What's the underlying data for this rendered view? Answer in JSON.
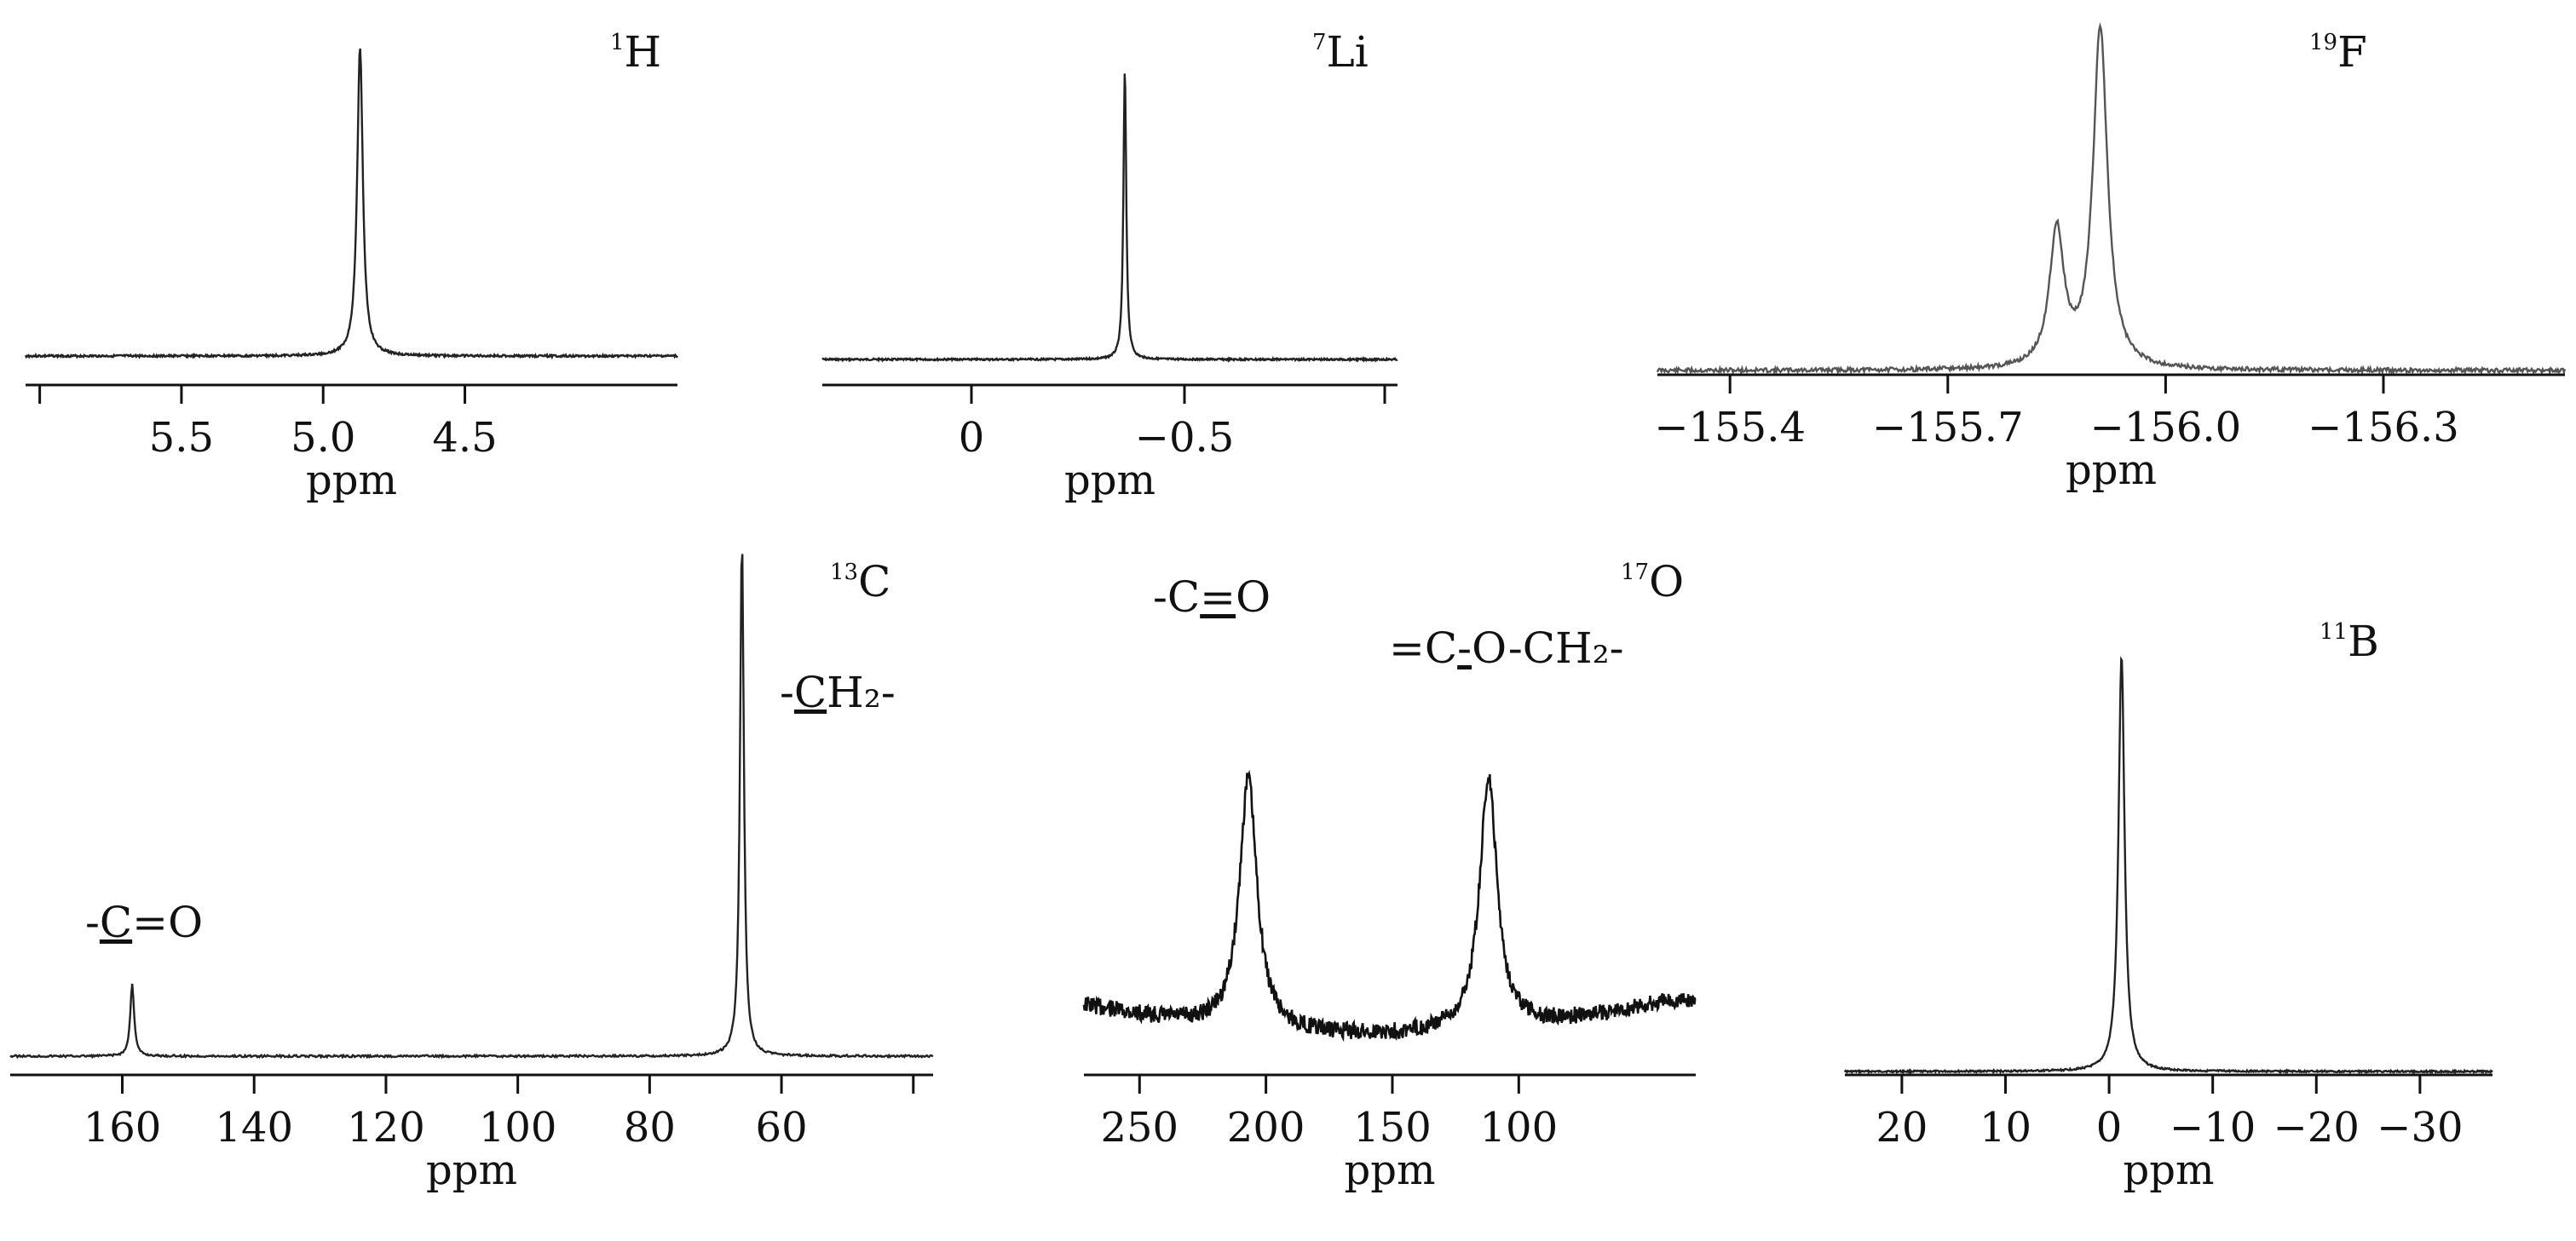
{
  "chart_data": [
    {
      "id": "h1",
      "type": "line",
      "nucleus_sup": "1",
      "nucleus": "H",
      "xlabel": "ppm",
      "x_reversed": true,
      "xlim": [
        6.05,
        3.75
      ],
      "tick_values": [
        6.0,
        5.5,
        5.0,
        4.5
      ],
      "tick_labels": [
        "",
        "5.5",
        "5.0",
        "4.5"
      ],
      "peaks": [
        {
          "x": 4.87,
          "height": 1.0
        }
      ],
      "annotations": []
    },
    {
      "id": "li7",
      "type": "line",
      "nucleus_sup": "7",
      "nucleus": "Li",
      "xlabel": "ppm",
      "x_reversed": true,
      "xlim": [
        0.35,
        -1.0
      ],
      "tick_values": [
        0,
        -0.5,
        -0.97
      ],
      "tick_labels": [
        "0",
        "−0.5",
        ""
      ],
      "peaks": [
        {
          "x": -0.36,
          "height": 1.0
        }
      ],
      "annotations": []
    },
    {
      "id": "f19",
      "type": "line",
      "nucleus_sup": "19",
      "nucleus": "F",
      "xlabel": "ppm",
      "x_reversed": true,
      "xlim": [
        -155.3,
        -156.55
      ],
      "tick_values": [
        -155.4,
        -155.7,
        -156.0,
        -156.3
      ],
      "tick_labels": [
        "−155.4",
        "−155.7",
        "−156.0",
        "−156.3"
      ],
      "peaks": [
        {
          "x": -155.85,
          "height": 0.4
        },
        {
          "x": -155.91,
          "height": 1.0
        }
      ],
      "annotations": []
    },
    {
      "id": "c13",
      "type": "line",
      "nucleus_sup": "13",
      "nucleus": "C",
      "xlabel": "ppm",
      "x_reversed": true,
      "xlim": [
        177,
        37
      ],
      "tick_values": [
        160,
        140,
        120,
        100,
        80,
        60,
        40
      ],
      "tick_labels": [
        "160",
        "140",
        "120",
        "100",
        "80",
        "60",
        ""
      ],
      "peaks": [
        {
          "x": 158.5,
          "height": 0.14
        },
        {
          "x": 66,
          "height": 1.0
        }
      ],
      "annotations": [
        {
          "text_pre": "-",
          "text_ul": "C",
          "text_post": "=O"
        },
        {
          "text_pre": "-",
          "text_ul": "C",
          "text_post": "H₂-"
        }
      ]
    },
    {
      "id": "o17",
      "type": "line",
      "nucleus_sup": "17",
      "nucleus": "O",
      "xlabel": "ppm",
      "x_reversed": true,
      "xlim": [
        272,
        30
      ],
      "tick_values": [
        250,
        200,
        150,
        100
      ],
      "tick_labels": [
        "250",
        "200",
        "150",
        "100"
      ],
      "peaks": [
        {
          "x": 207,
          "height": 1.0
        },
        {
          "x": 112,
          "height": 1.0
        }
      ],
      "annotations": [
        {
          "text_pre": "-C",
          "text_ul": "=",
          "text_post": "O"
        },
        {
          "text_pre": "=C",
          "text_ul": "-",
          "text_post": "O-CH₂-"
        }
      ]
    },
    {
      "id": "b11",
      "type": "line",
      "nucleus_sup": "11",
      "nucleus": "B",
      "xlabel": "ppm",
      "x_reversed": true,
      "xlim": [
        25.5,
        -37
      ],
      "tick_values": [
        20,
        10,
        0,
        -10,
        -20,
        -30
      ],
      "tick_labels": [
        "20",
        "10",
        "0",
        "−10",
        "−20",
        "−30"
      ],
      "peaks": [
        {
          "x": -1.2,
          "height": 1.0
        }
      ],
      "annotations": []
    }
  ]
}
